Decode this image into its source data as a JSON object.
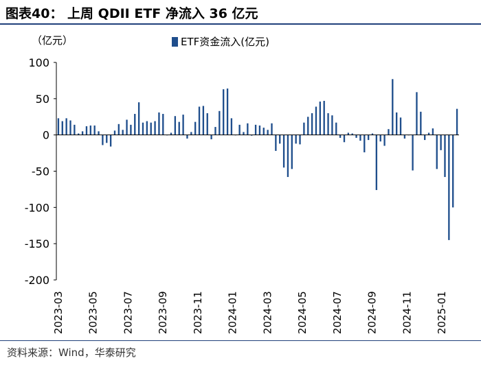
{
  "header": {
    "title": "图表40：  上周 QDII ETF 净流入 36 亿元"
  },
  "footer": {
    "source": "资料来源：Wind，华泰研究"
  },
  "colors": {
    "bar": "#1f4e8c",
    "rule": "#1f3f7a"
  },
  "chart_data": {
    "type": "bar",
    "title": "",
    "ylabel": "（亿元）",
    "xlabel": "",
    "ylim": [
      -200,
      100
    ],
    "yticks": [
      100,
      50,
      0,
      -50,
      -100,
      -150,
      -200
    ],
    "xtick_labels": [
      "2023-03",
      "2023-05",
      "2023-07",
      "2023-09",
      "2023-11",
      "2024-01",
      "2024-03",
      "2024-05",
      "2024-07",
      "2024-09",
      "2024-11",
      "2025-01"
    ],
    "legend_position": "top",
    "grid": false,
    "series": [
      {
        "name": "ETF资金流入(亿元)",
        "values": [
          23,
          19,
          23,
          20,
          14,
          2,
          5,
          12,
          13,
          13,
          5,
          -14,
          -11,
          -16,
          6,
          15,
          7,
          21,
          14,
          29,
          45,
          17,
          19,
          17,
          19,
          31,
          29,
          0,
          3,
          26,
          18,
          28,
          -5,
          4,
          18,
          39,
          40,
          30,
          -6,
          11,
          33,
          63,
          64,
          23,
          0,
          14,
          4,
          16,
          -1,
          14,
          13,
          10,
          7,
          16,
          -22,
          -12,
          -45,
          -58,
          -47,
          -12,
          -13,
          17,
          25,
          30,
          39,
          46,
          47,
          30,
          27,
          17,
          -4,
          -10,
          3,
          2,
          -4,
          -8,
          -24,
          -7,
          2,
          -76,
          -9,
          -15,
          8,
          77,
          31,
          24,
          -5,
          0,
          -49,
          59,
          32,
          -7,
          3,
          9,
          -47,
          -21,
          -58,
          -145,
          -100,
          36
        ]
      }
    ]
  }
}
